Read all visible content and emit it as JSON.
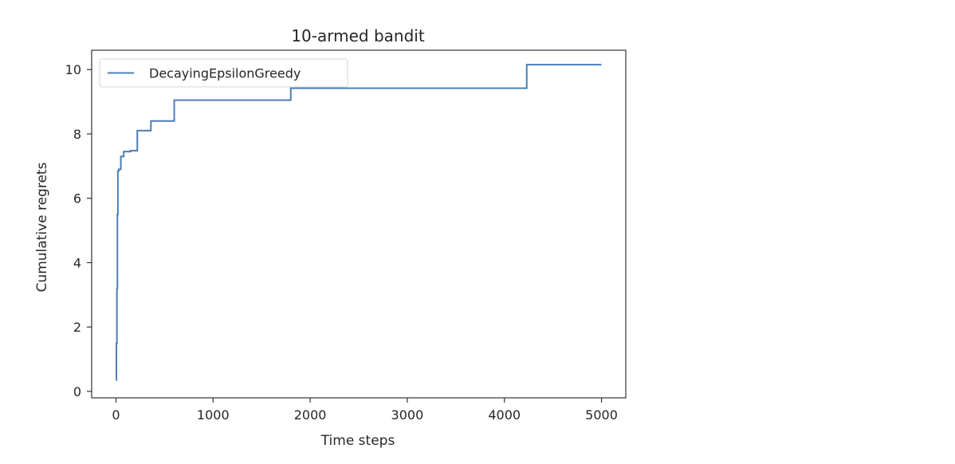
{
  "chart_data": {
    "type": "line",
    "title": "10-armed bandit",
    "xlabel": "Time steps",
    "ylabel": "Cumulative regrets",
    "xlim": [
      -250,
      5250
    ],
    "ylim": [
      -0.2,
      10.6
    ],
    "xticks": [
      0,
      1000,
      2000,
      3000,
      4000,
      5000
    ],
    "yticks": [
      0,
      2,
      4,
      6,
      8,
      10
    ],
    "grid": false,
    "legend_position": "upper-left",
    "series": [
      {
        "name": "DecayingEpsilonGreedy",
        "color": "#4a7fb8",
        "step": true,
        "x": [
          0,
          5,
          10,
          15,
          20,
          30,
          50,
          80,
          150,
          220,
          360,
          600,
          1800,
          4230,
          5000
        ],
        "y": [
          0.35,
          1.5,
          3.2,
          5.5,
          6.85,
          6.9,
          7.3,
          7.45,
          7.48,
          8.1,
          8.4,
          9.05,
          9.42,
          10.15,
          10.15
        ]
      }
    ]
  }
}
